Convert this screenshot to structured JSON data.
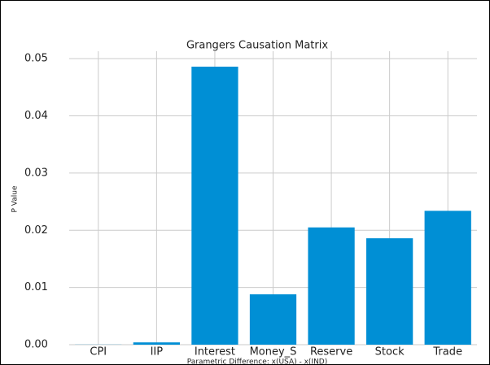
{
  "chart_data": {
    "type": "bar",
    "title": "Grangers Causation Matrix",
    "ylabel": "P Value",
    "xlabel": "Parametric Difference: x(USA) - x(IND)",
    "categories": [
      "CPI",
      "IIP",
      "Interest",
      "Money_S",
      "Reserve",
      "Stock",
      "Trade"
    ],
    "values": [
      2e-05,
      0.0004,
      0.0486,
      0.0088,
      0.0205,
      0.0186,
      0.0234
    ],
    "color": "#008fd5",
    "ylim": [
      0,
      0.0513
    ],
    "yticks": [
      {
        "value": 0,
        "label": "0.00"
      },
      {
        "value": 0.01,
        "label": "0.01"
      },
      {
        "value": 0.02,
        "label": "0.02"
      },
      {
        "value": 0.03,
        "label": "0.03"
      },
      {
        "value": 0.04,
        "label": "0.04"
      },
      {
        "value": 0.05,
        "label": "0.05"
      }
    ],
    "grid": true
  }
}
